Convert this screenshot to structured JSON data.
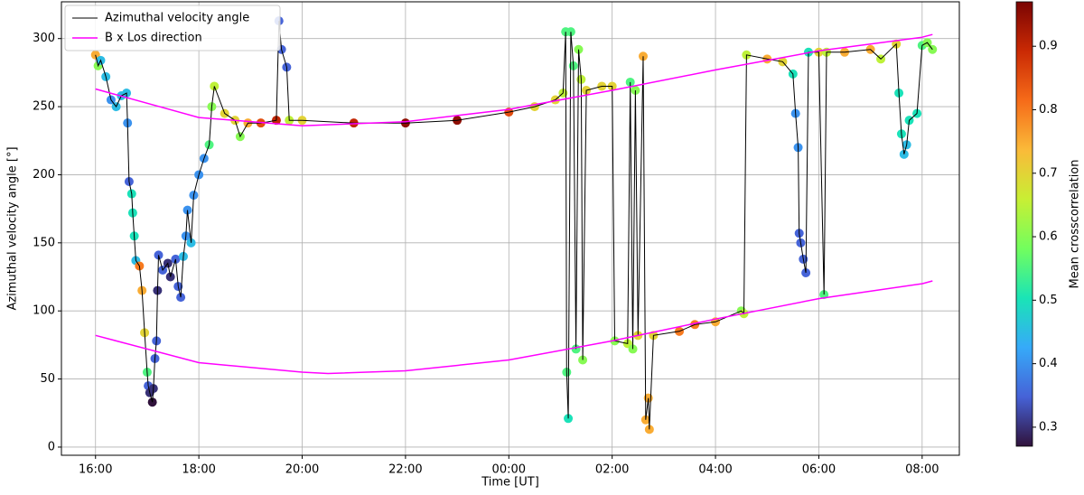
{
  "chart_data": {
    "type": "line-scatter",
    "xlabel": "Time [UT]",
    "ylabel": "Azimuthal velocity angle [°]",
    "xlim": [
      15.34,
      32.72
    ],
    "ylim": [
      -6,
      327
    ],
    "xticks": [
      {
        "value": 16,
        "label": "16:00"
      },
      {
        "value": 18,
        "label": "18:00"
      },
      {
        "value": 20,
        "label": "20:00"
      },
      {
        "value": 22,
        "label": "22:00"
      },
      {
        "value": 24,
        "label": "00:00"
      },
      {
        "value": 26,
        "label": "02:00"
      },
      {
        "value": 28,
        "label": "04:00"
      },
      {
        "value": 30,
        "label": "06:00"
      },
      {
        "value": 32,
        "label": "08:00"
      }
    ],
    "yticks": [
      0,
      50,
      100,
      150,
      200,
      250,
      300
    ],
    "grid": true,
    "legend": "upper left",
    "colormap": [
      "#30123b",
      "#4662d7",
      "#36aaf9",
      "#1ae4b6",
      "#72fe5e",
      "#c8ef34",
      "#faba39",
      "#f66b19",
      "#ca2a04",
      "#7a0403"
    ],
    "colorbar": {
      "label": "Mean crosscorrelation",
      "lim": [
        0.27,
        0.97
      ],
      "ticks": [
        0.3,
        0.4,
        0.5,
        0.6,
        0.7,
        0.8,
        0.9
      ]
    },
    "series": [
      {
        "name": "Azimuthal velocity angle",
        "color": "#000000",
        "x": [
          16.0,
          16.05,
          16.1,
          16.2,
          16.3,
          16.4,
          16.5,
          16.6,
          16.62,
          16.65,
          16.7,
          16.72,
          16.75,
          16.78,
          16.85,
          16.9,
          16.95,
          17.0,
          17.02,
          17.05,
          17.1,
          17.12,
          17.15,
          17.18,
          17.2,
          17.22,
          17.3,
          17.4,
          17.45,
          17.55,
          17.6,
          17.65,
          17.7,
          17.75,
          17.78,
          17.85,
          17.9,
          18.0,
          18.1,
          18.2,
          18.25,
          18.3,
          18.5,
          18.7,
          18.8,
          18.95,
          19.2,
          19.5,
          19.55,
          19.6,
          19.7,
          19.75,
          20.0,
          21.0,
          22.0,
          23.0,
          24.0,
          24.5,
          24.9,
          25.05,
          25.1,
          25.12,
          25.15,
          25.2,
          25.25,
          25.3,
          25.35,
          25.4,
          25.43,
          25.5,
          25.8,
          26.0,
          26.05,
          26.3,
          26.35,
          26.4,
          26.45,
          26.5,
          26.6,
          26.65,
          26.7,
          26.72,
          26.8,
          27.3,
          27.6,
          28.0,
          28.5,
          28.55,
          28.6,
          29.0,
          29.3,
          29.5,
          29.55,
          29.6,
          29.62,
          29.65,
          29.7,
          29.75,
          29.8,
          30.0,
          30.1,
          30.15,
          30.5,
          31.0,
          31.2,
          31.5,
          31.55,
          31.6,
          31.65,
          31.7,
          31.75,
          31.9,
          32.0,
          32.1,
          32.2
        ],
        "values": [
          288,
          280,
          284,
          272,
          255,
          250,
          258,
          260,
          238,
          195,
          186,
          172,
          155,
          137,
          133,
          115,
          84,
          55,
          45,
          40,
          33,
          43,
          65,
          78,
          115,
          141,
          130,
          135,
          125,
          138,
          118,
          110,
          140,
          155,
          174,
          150,
          185,
          200,
          212,
          222,
          250,
          265,
          245,
          240,
          228,
          238,
          238,
          240,
          313,
          292,
          279,
          240,
          240,
          238,
          238,
          240,
          246,
          250,
          255,
          260,
          305,
          55,
          21,
          305,
          280,
          72,
          292,
          270,
          64,
          262,
          265,
          265,
          78,
          76,
          268,
          72,
          262,
          82,
          287,
          20,
          36,
          13,
          82,
          85,
          90,
          92,
          100,
          98,
          288,
          285,
          283,
          274,
          245,
          220,
          157,
          150,
          138,
          128,
          290,
          290,
          112,
          290,
          290,
          292,
          285,
          296,
          260,
          230,
          215,
          222,
          240,
          245,
          295,
          297,
          292
        ],
        "crosscorrelation": [
          0.75,
          0.6,
          0.45,
          0.45,
          0.4,
          0.45,
          0.45,
          0.45,
          0.4,
          0.35,
          0.5,
          0.5,
          0.5,
          0.45,
          0.8,
          0.75,
          0.7,
          0.55,
          0.35,
          0.3,
          0.27,
          0.3,
          0.35,
          0.35,
          0.3,
          0.35,
          0.35,
          0.3,
          0.3,
          0.35,
          0.35,
          0.35,
          0.45,
          0.4,
          0.4,
          0.45,
          0.4,
          0.4,
          0.4,
          0.55,
          0.6,
          0.65,
          0.7,
          0.7,
          0.6,
          0.75,
          0.85,
          0.9,
          0.35,
          0.35,
          0.35,
          0.65,
          0.7,
          0.9,
          0.95,
          0.95,
          0.85,
          0.7,
          0.7,
          0.65,
          0.55,
          0.55,
          0.5,
          0.55,
          0.55,
          0.55,
          0.6,
          0.65,
          0.6,
          0.7,
          0.7,
          0.7,
          0.6,
          0.65,
          0.55,
          0.6,
          0.6,
          0.7,
          0.75,
          0.75,
          0.75,
          0.75,
          0.7,
          0.8,
          0.8,
          0.75,
          0.6,
          0.65,
          0.65,
          0.75,
          0.7,
          0.5,
          0.4,
          0.4,
          0.35,
          0.35,
          0.35,
          0.35,
          0.5,
          0.7,
          0.55,
          0.65,
          0.75,
          0.75,
          0.65,
          0.7,
          0.5,
          0.5,
          0.45,
          0.45,
          0.5,
          0.5,
          0.55,
          0.6,
          0.6
        ]
      },
      {
        "name": "B x Los direction",
        "color": "#ff00ff",
        "x": [
          16,
          18,
          20,
          22,
          24,
          26,
          28,
          30,
          32,
          32.2,
          null,
          16,
          18,
          20,
          20.5,
          22,
          24,
          26,
          28,
          30,
          32,
          32.2
        ],
        "values": [
          263,
          242,
          236,
          239,
          248,
          262,
          277,
          291,
          301,
          303,
          null,
          82,
          62,
          55,
          54,
          56,
          64,
          78,
          94,
          109,
          120,
          122
        ]
      }
    ]
  }
}
